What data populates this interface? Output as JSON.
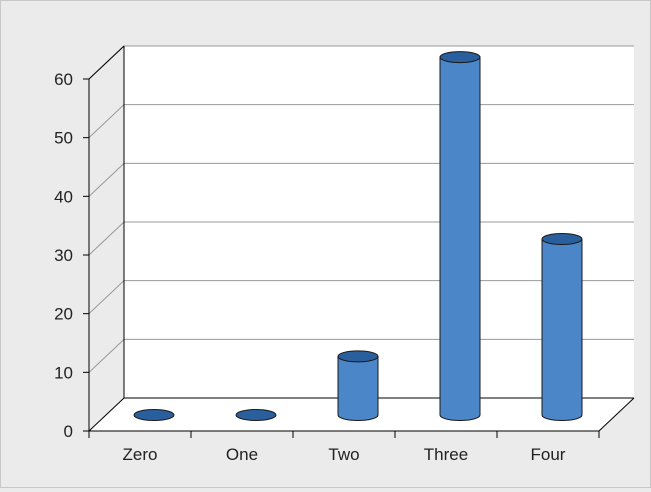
{
  "chart_data": {
    "type": "bar",
    "style": "3d-cylinder",
    "categories": [
      "Zero",
      "One",
      "Two",
      "Three",
      "Four"
    ],
    "values": [
      0,
      0,
      10,
      61,
      30
    ],
    "ylim": [
      0,
      60
    ],
    "yticks": [
      "0",
      "10",
      "20",
      "30",
      "40",
      "50",
      "60"
    ],
    "grid": true,
    "legend": "none",
    "title": "",
    "xlabel": "",
    "ylabel": "",
    "colors": {
      "bar_side": "#4a86c8",
      "bar_top": "#2a5f9e",
      "bar_outline": "#1a1a1a",
      "plot_back": "#ffffff",
      "floor": "#ffffff",
      "gridline": "#999999",
      "axis": "#000000",
      "page_background": "#ebebeb"
    }
  }
}
